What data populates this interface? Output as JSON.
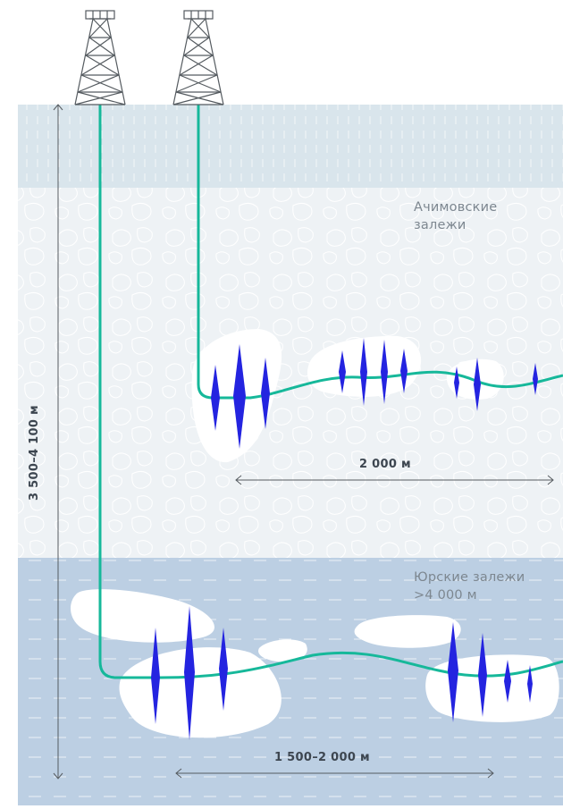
{
  "labels": {
    "achimov": [
      "Ачимовские",
      "залежи"
    ],
    "jurassic": [
      "Юрские залежи",
      ">4 000 м"
    ]
  },
  "dimensions": {
    "total_depth": "3 500–4 100 м",
    "upper_horizontal": "2 000 м",
    "lower_horizontal": "1 500–2 000 м"
  },
  "colors": {
    "top_layer": "#d9e5ec",
    "middle_layer": "#eef2f5",
    "bottom_layer": "#bccfe3",
    "well": "#16b89a",
    "fracture": "#2424e0",
    "rig": "#555b60"
  }
}
